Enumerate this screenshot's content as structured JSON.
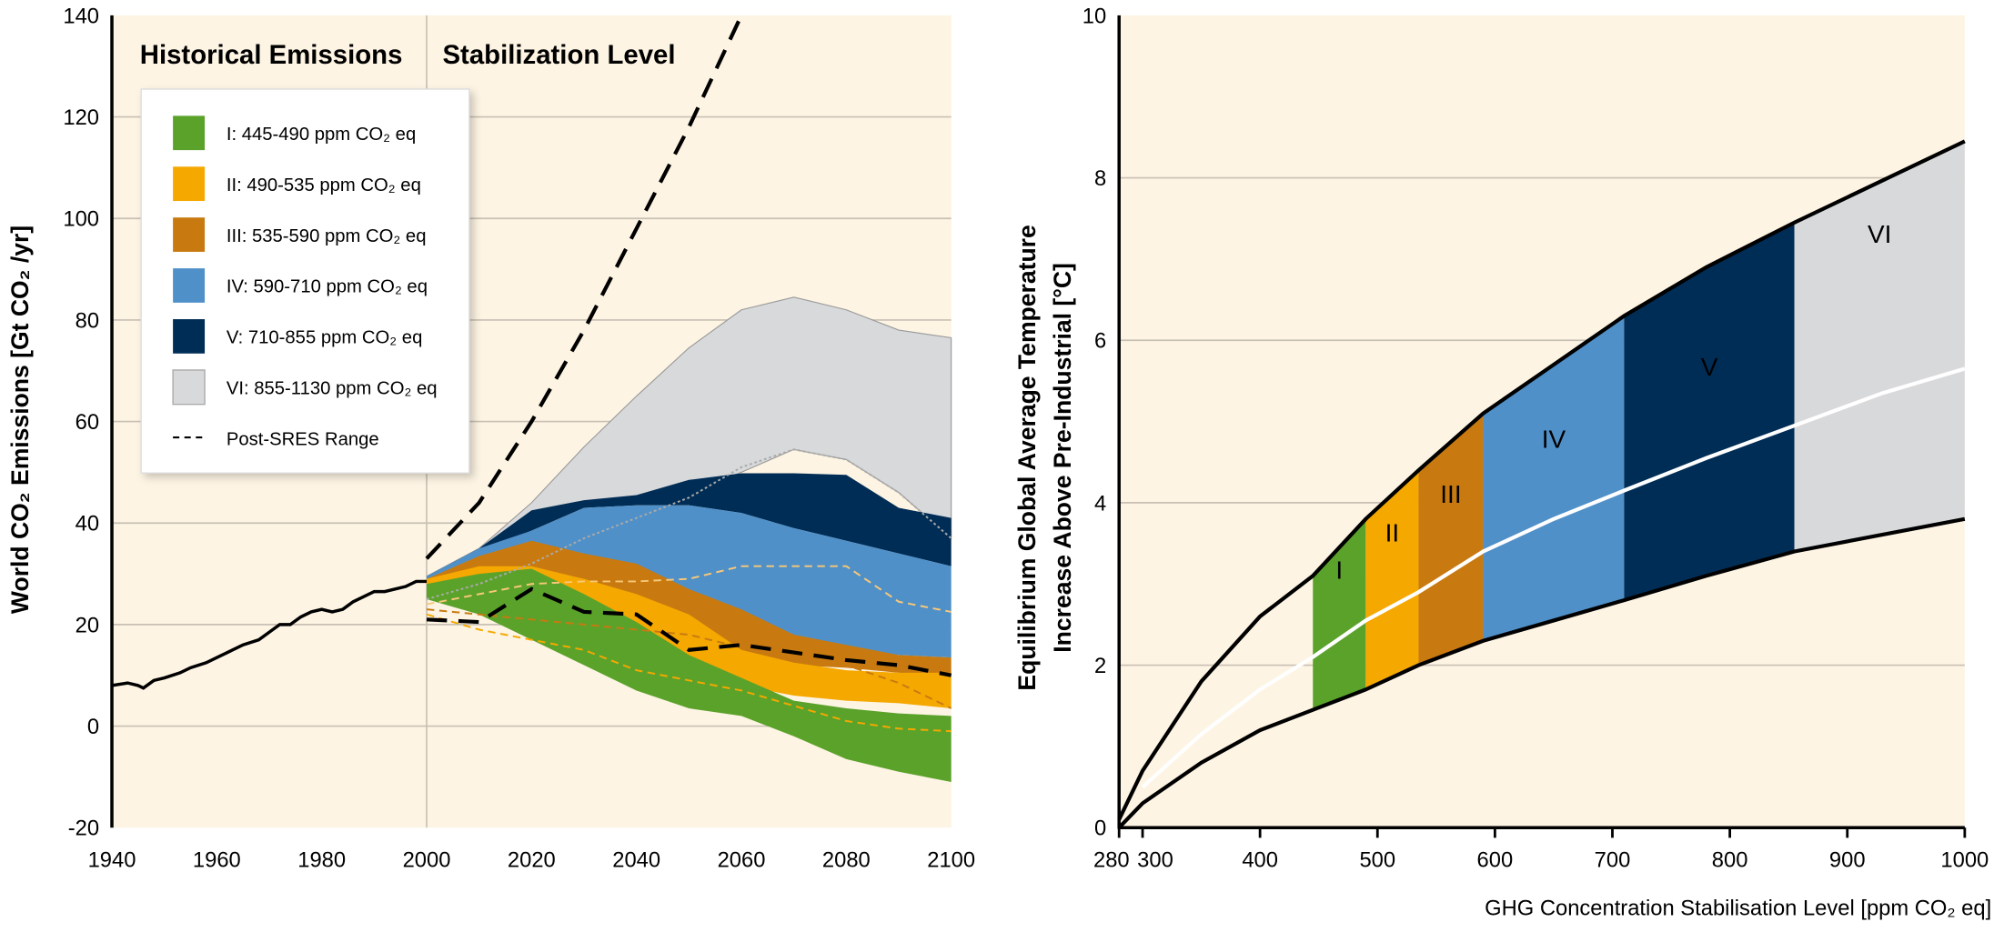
{
  "colors": {
    "background": "#fdf4e3",
    "gridline": "#c8c0b4",
    "I": "#5ba22b",
    "II": "#f5a800",
    "III": "#c87a10",
    "IV": "#5090c8",
    "V": "#002d56",
    "VI": "#d8d9db"
  },
  "chart_data": [
    {
      "type": "area",
      "title": "",
      "ylabel": "World CO₂ Emissions [Gt CO₂ /yr]",
      "xlabel": "",
      "xlim": [
        1940,
        2100
      ],
      "ylim": [
        -20,
        140
      ],
      "grid": true,
      "section_labels": [
        "Historical Emissions",
        "Stabilization Level"
      ],
      "x_ticks": [
        "1940",
        "1960",
        "1980",
        "2000",
        "2020",
        "2040",
        "2060",
        "2080",
        "2100"
      ],
      "y_ticks": [
        "-20",
        "0",
        "20",
        "40",
        "60",
        "80",
        "100",
        "120",
        "140"
      ],
      "legend_placement": "top-left",
      "legend": [
        {
          "key": "I",
          "label": "I: 445-490 ppm CO₂ eq"
        },
        {
          "key": "II",
          "label": "II: 490-535 ppm CO₂ eq"
        },
        {
          "key": "III",
          "label": "III: 535-590 ppm CO₂ eq"
        },
        {
          "key": "IV",
          "label": "IV: 590-710 ppm CO₂ eq"
        },
        {
          "key": "V",
          "label": "V: 710-855 ppm CO₂ eq"
        },
        {
          "key": "VI",
          "label": "VI: 855-1130 ppm CO₂ eq"
        },
        {
          "key": "sres",
          "label": "Post-SRES Range"
        }
      ],
      "historical": {
        "x": [
          1940,
          1943,
          1945,
          1946,
          1948,
          1950,
          1953,
          1955,
          1958,
          1960,
          1963,
          1965,
          1968,
          1970,
          1972,
          1974,
          1976,
          1978,
          1980,
          1982,
          1984,
          1986,
          1988,
          1990,
          1992,
          1994,
          1996,
          1998,
          2000
        ],
        "y": [
          8,
          8.5,
          8,
          7.5,
          9,
          9.5,
          10.5,
          11.5,
          12.5,
          13.5,
          15,
          16,
          17,
          18.5,
          20,
          20,
          21.5,
          22.5,
          23,
          22.5,
          23,
          24.5,
          25.5,
          26.5,
          26.5,
          27,
          27.5,
          28.5,
          28.5
        ]
      },
      "scenario_x": [
        2000,
        2010,
        2020,
        2030,
        2040,
        2050,
        2060,
        2070,
        2080,
        2090,
        2100
      ],
      "bands": [
        {
          "key": "VI",
          "upper": [
            29.5,
            35,
            44,
            55,
            65,
            74.5,
            82,
            84.5,
            82,
            78,
            76.5
          ],
          "lower": [
            29.5,
            35,
            40,
            43,
            45,
            46,
            50,
            54.5,
            52.5,
            46,
            37
          ]
        },
        {
          "key": "V",
          "upper": [
            29.5,
            35,
            42.5,
            44.5,
            45.5,
            48.5,
            49.8,
            49.8,
            49.5,
            43,
            41
          ],
          "lower": [
            29,
            34,
            38.5,
            43,
            43.5,
            43.5,
            42,
            39,
            36.5,
            34,
            31.5
          ]
        },
        {
          "key": "IV",
          "upper": [
            29.5,
            35,
            38.5,
            43,
            43.5,
            43.5,
            42,
            39,
            36.5,
            34,
            31.5
          ],
          "lower": [
            28,
            30,
            31,
            28,
            26,
            22,
            18,
            16,
            15,
            14,
            13.5
          ]
        },
        {
          "key": "III",
          "upper": [
            29,
            33.5,
            36.5,
            34,
            32,
            27,
            23,
            18,
            16,
            14,
            13.5
          ],
          "lower": [
            28,
            29,
            30,
            27,
            23,
            17,
            13,
            12,
            11.5,
            10.5,
            10
          ]
        },
        {
          "key": "II",
          "upper": [
            29,
            31.5,
            31.5,
            29,
            26,
            22,
            15,
            12.5,
            11,
            10.5,
            10.5
          ],
          "lower": [
            27,
            27,
            26,
            20,
            14.5,
            11,
            8,
            6,
            5,
            4.5,
            3.5
          ]
        },
        {
          "key": "I",
          "upper": [
            28,
            30,
            31,
            26,
            20.5,
            14,
            9.5,
            5,
            3.5,
            2.5,
            2
          ],
          "lower": [
            25,
            22,
            17,
            12,
            7,
            3.5,
            2,
            -2,
            -6.5,
            -9,
            -11
          ]
        }
      ],
      "post_sres_range": {
        "upper": {
          "x": [
            2000,
            2010,
            2020,
            2030,
            2040,
            2050,
            2060
          ],
          "y": [
            33,
            44,
            60,
            78,
            98,
            118,
            140
          ]
        },
        "lower": {
          "x": [
            2000,
            2010,
            2020,
            2030,
            2040,
            2050,
            2060,
            2070,
            2080,
            2090,
            2100
          ],
          "y": [
            21,
            20.5,
            27,
            22.5,
            22,
            15,
            16,
            14.5,
            13,
            12,
            10
          ]
        }
      },
      "median_lines": [
        {
          "key": "VI",
          "y": [
            25,
            28,
            32,
            37,
            41,
            45,
            51,
            54.5,
            52.5,
            46,
            37
          ]
        },
        {
          "key": "IV",
          "y": [
            24,
            26,
            28,
            28.5,
            28.5,
            29,
            31.5,
            31.5,
            31.5,
            24.5,
            22.5
          ]
        },
        {
          "key": "III",
          "y": [
            23,
            22,
            21,
            20,
            19,
            18,
            15.5,
            13.5,
            12,
            8.5,
            3.5
          ]
        },
        {
          "key": "I",
          "y": [
            22,
            19,
            17,
            15,
            11,
            9,
            7,
            4,
            1,
            -0.5,
            -1
          ]
        }
      ]
    },
    {
      "type": "area",
      "title": "",
      "ylabel": [
        "Equilibrium Global Average Temperature",
        "Increase Above Pre-Industrial [°C]"
      ],
      "xlabel": "GHG Concentration Stabilisation Level [ppm CO₂ eq]",
      "xlim": [
        280,
        1000
      ],
      "ylim": [
        0,
        10
      ],
      "grid": true,
      "x_ticks": [
        "280",
        "300",
        "400",
        "500",
        "600",
        "700",
        "800",
        "900",
        "1000"
      ],
      "y_ticks": [
        "0",
        "2",
        "4",
        "6",
        "8",
        "10"
      ],
      "upper_curve": {
        "x": [
          280,
          300,
          350,
          400,
          445,
          490,
          535,
          590,
          650,
          710,
          780,
          855,
          1000
        ],
        "y": [
          0.1,
          0.7,
          1.8,
          2.6,
          3.1,
          3.8,
          4.4,
          5.1,
          5.7,
          6.3,
          6.9,
          7.45,
          8.45
        ]
      },
      "lower_curve": {
        "x": [
          280,
          300,
          350,
          400,
          445,
          490,
          535,
          590,
          650,
          710,
          780,
          855,
          1000
        ],
        "y": [
          0,
          0.3,
          0.8,
          1.2,
          1.45,
          1.7,
          2.0,
          2.3,
          2.55,
          2.8,
          3.1,
          3.4,
          3.8
        ]
      },
      "best_estimate": {
        "x": [
          300,
          350,
          400,
          445,
          490,
          535,
          590,
          650,
          710,
          780,
          855,
          930,
          1000
        ],
        "y": [
          0.5,
          1.15,
          1.7,
          2.1,
          2.55,
          2.9,
          3.4,
          3.8,
          4.15,
          4.55,
          4.95,
          5.35,
          5.65
        ]
      },
      "categories": [
        {
          "key": "I",
          "label": "I",
          "range": [
            445,
            490
          ]
        },
        {
          "key": "II",
          "label": "II",
          "range": [
            490,
            535
          ]
        },
        {
          "key": "III",
          "label": "III",
          "range": [
            535,
            590
          ]
        },
        {
          "key": "IV",
          "label": "IV",
          "range": [
            590,
            710
          ]
        },
        {
          "key": "V",
          "label": "V",
          "range": [
            710,
            855
          ]
        },
        {
          "key": "VI",
          "label": "VI",
          "range": [
            855,
            1000
          ]
        }
      ]
    }
  ]
}
